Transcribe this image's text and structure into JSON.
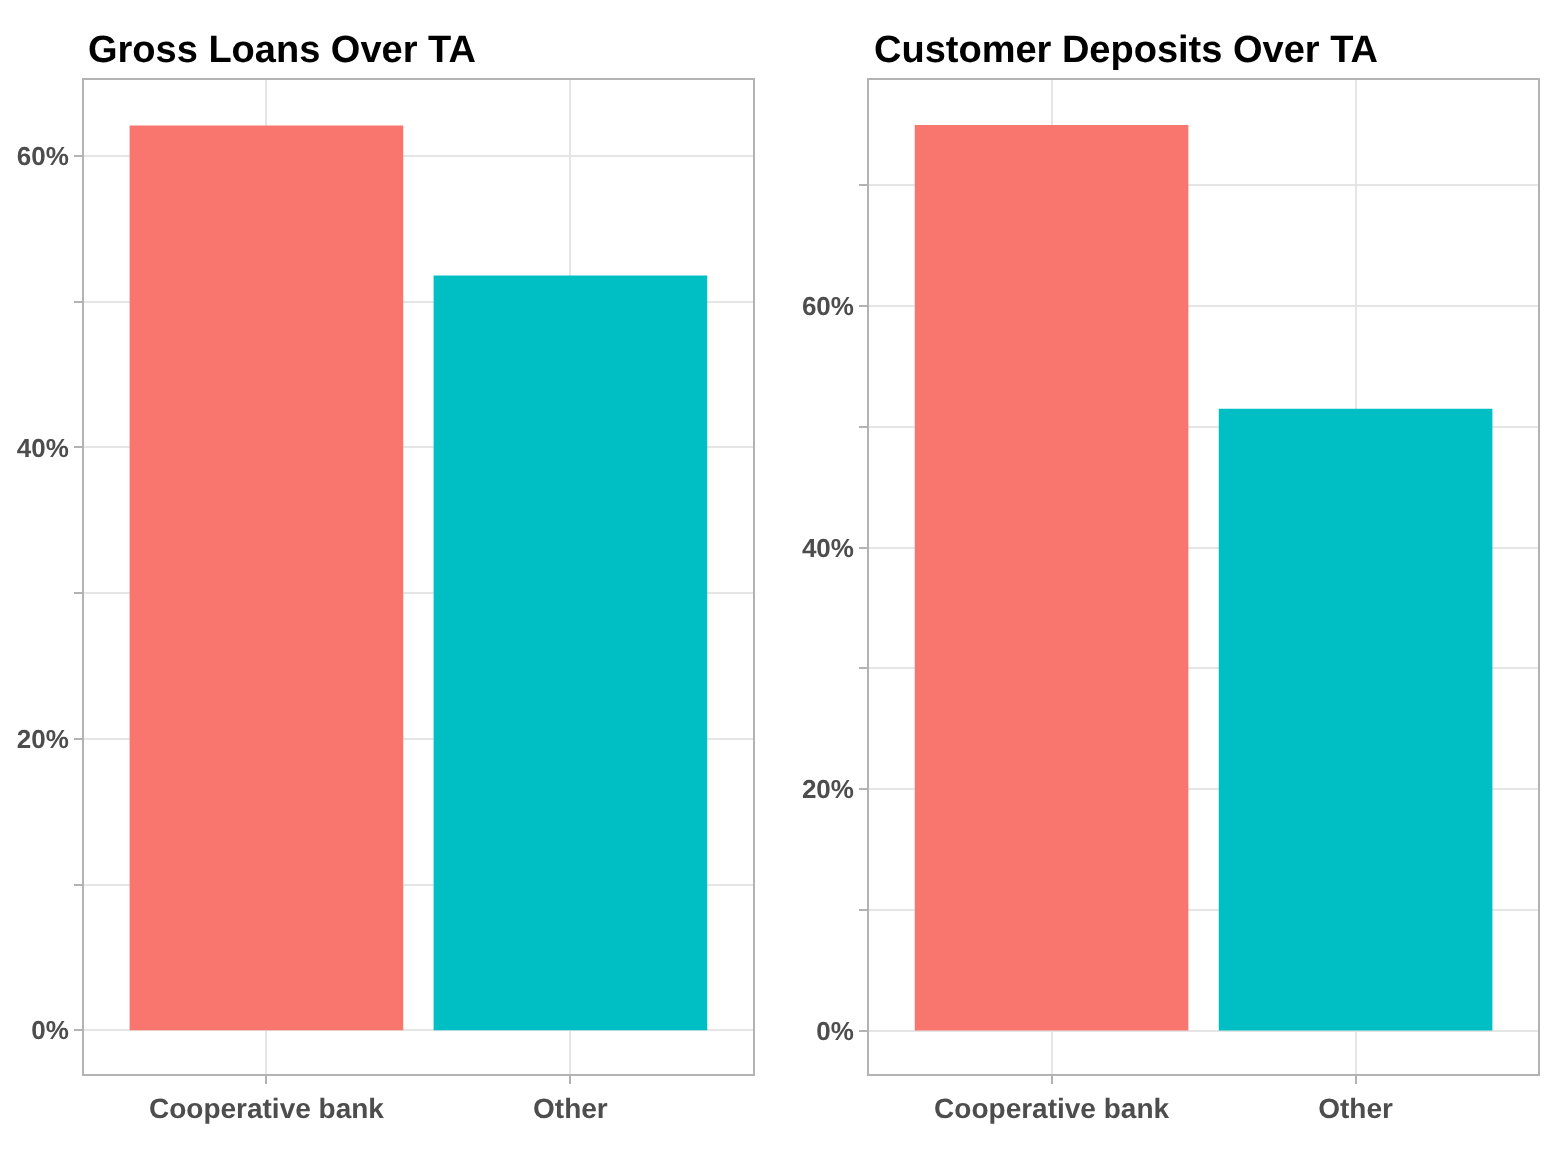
{
  "chart_data": [
    {
      "type": "bar",
      "title": "Gross Loans Over TA",
      "categories": [
        "Cooperative bank",
        "Other"
      ],
      "values": [
        62.1,
        51.8
      ],
      "colors": [
        "#f8766d",
        "#00bfc4"
      ],
      "ylim": [
        -3,
        65.2
      ],
      "yticks": [
        {
          "value": 0,
          "label": "0%"
        },
        {
          "value": 10,
          "label": null
        },
        {
          "value": 20,
          "label": "20%"
        },
        {
          "value": 30,
          "label": null
        },
        {
          "value": 40,
          "label": "40%"
        },
        {
          "value": 50,
          "label": null
        },
        {
          "value": 60,
          "label": "60%"
        }
      ],
      "grid": true
    },
    {
      "type": "bar",
      "title": "Customer Deposits Over TA",
      "categories": [
        "Cooperative bank",
        "Other"
      ],
      "values": [
        75.0,
        51.5
      ],
      "colors": [
        "#f8766d",
        "#00bfc4"
      ],
      "ylim": [
        -3.6,
        78.7
      ],
      "yticks": [
        {
          "value": 0,
          "label": "0%"
        },
        {
          "value": 10,
          "label": null
        },
        {
          "value": 20,
          "label": "20%"
        },
        {
          "value": 30,
          "label": null
        },
        {
          "value": 40,
          "label": "40%"
        },
        {
          "value": 50,
          "label": null
        },
        {
          "value": 60,
          "label": "60%"
        },
        {
          "value": 70,
          "label": null
        }
      ],
      "grid": true
    }
  ]
}
